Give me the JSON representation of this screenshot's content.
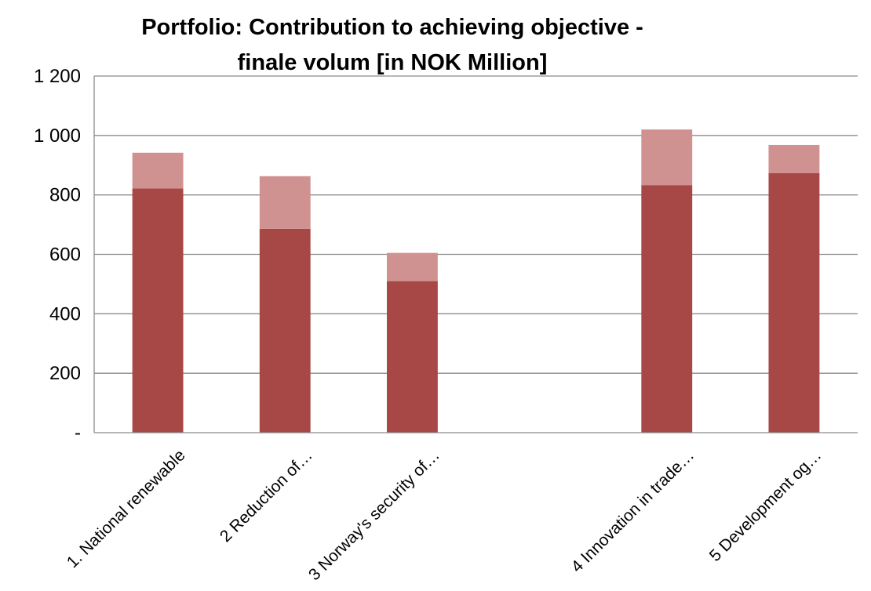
{
  "chart_data": {
    "type": "bar",
    "stacked": true,
    "title": [
      "Portfolio: Contribution to achieving objective -",
      "finale volum [in NOK Million]"
    ],
    "categories": [
      "1. National renewable",
      "2 Reduction of…",
      "3 Norway's security of…",
      "",
      "4 Innovation in trade…",
      "5 Development og…"
    ],
    "series": [
      {
        "values": [
          822,
          686,
          510,
          null,
          833,
          873
        ]
      },
      {
        "values": [
          120,
          177,
          95,
          null,
          187,
          95
        ]
      }
    ],
    "yticks": [
      "-",
      "200",
      "400",
      "600",
      "800",
      "1 000",
      "1 200"
    ],
    "ylim": [
      0,
      1200
    ],
    "grid": true,
    "legend": "none",
    "colors": [
      "#a84846",
      "#d09290"
    ]
  }
}
